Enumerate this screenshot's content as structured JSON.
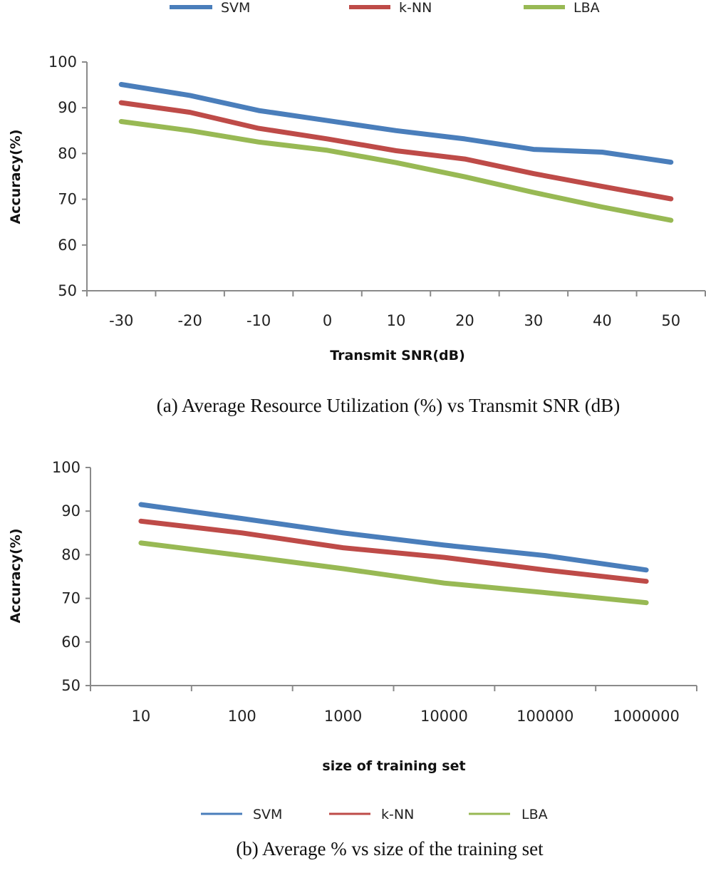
{
  "chart_data": [
    {
      "type": "line",
      "caption": "(a) Average Resource Utilization (%) vs Transmit SNR (dB)",
      "xlabel": "Transmit SNR(dB)",
      "ylabel": "Accuracy(%)",
      "categories": [
        "-30",
        "-20",
        "-10",
        "0",
        "10",
        "20",
        "30",
        "40",
        "50"
      ],
      "ylim": [
        50,
        100
      ],
      "yticks": [
        50,
        60,
        70,
        80,
        90,
        100
      ],
      "grid": false,
      "legend": "top",
      "series": [
        {
          "name": "SVM",
          "color": "#4a7ebb",
          "values": [
            95.1,
            92.7,
            89.4,
            87.2,
            85.0,
            83.2,
            80.9,
            80.3,
            78.1
          ]
        },
        {
          "name": "k-NN",
          "color": "#be4b48",
          "values": [
            91.1,
            89.0,
            85.5,
            83.2,
            80.6,
            78.8,
            75.6,
            72.8,
            70.1
          ]
        },
        {
          "name": "LBA",
          "color": "#98b954",
          "values": [
            87.0,
            85.0,
            82.5,
            80.7,
            78.0,
            74.9,
            71.5,
            68.3,
            65.4
          ]
        }
      ]
    },
    {
      "type": "line",
      "caption": "(b) Average % vs size of the training set",
      "xlabel": "size of training set",
      "ylabel": "Accuracy(%)",
      "categories": [
        "10",
        "100",
        "1000",
        "10000",
        "100000",
        "1000000"
      ],
      "ylim": [
        50,
        100
      ],
      "yticks": [
        50,
        60,
        70,
        80,
        90,
        100
      ],
      "grid": false,
      "legend": "bottom",
      "series": [
        {
          "name": "SVM",
          "color": "#4a7ebb",
          "values": [
            91.5,
            88.3,
            85.0,
            82.2,
            79.8,
            76.5
          ]
        },
        {
          "name": "k-NN",
          "color": "#be4b48",
          "values": [
            87.7,
            85.0,
            81.6,
            79.4,
            76.5,
            73.9
          ]
        },
        {
          "name": "LBA",
          "color": "#98b954",
          "values": [
            82.7,
            79.8,
            76.8,
            73.5,
            71.3,
            69.0
          ]
        }
      ]
    }
  ]
}
